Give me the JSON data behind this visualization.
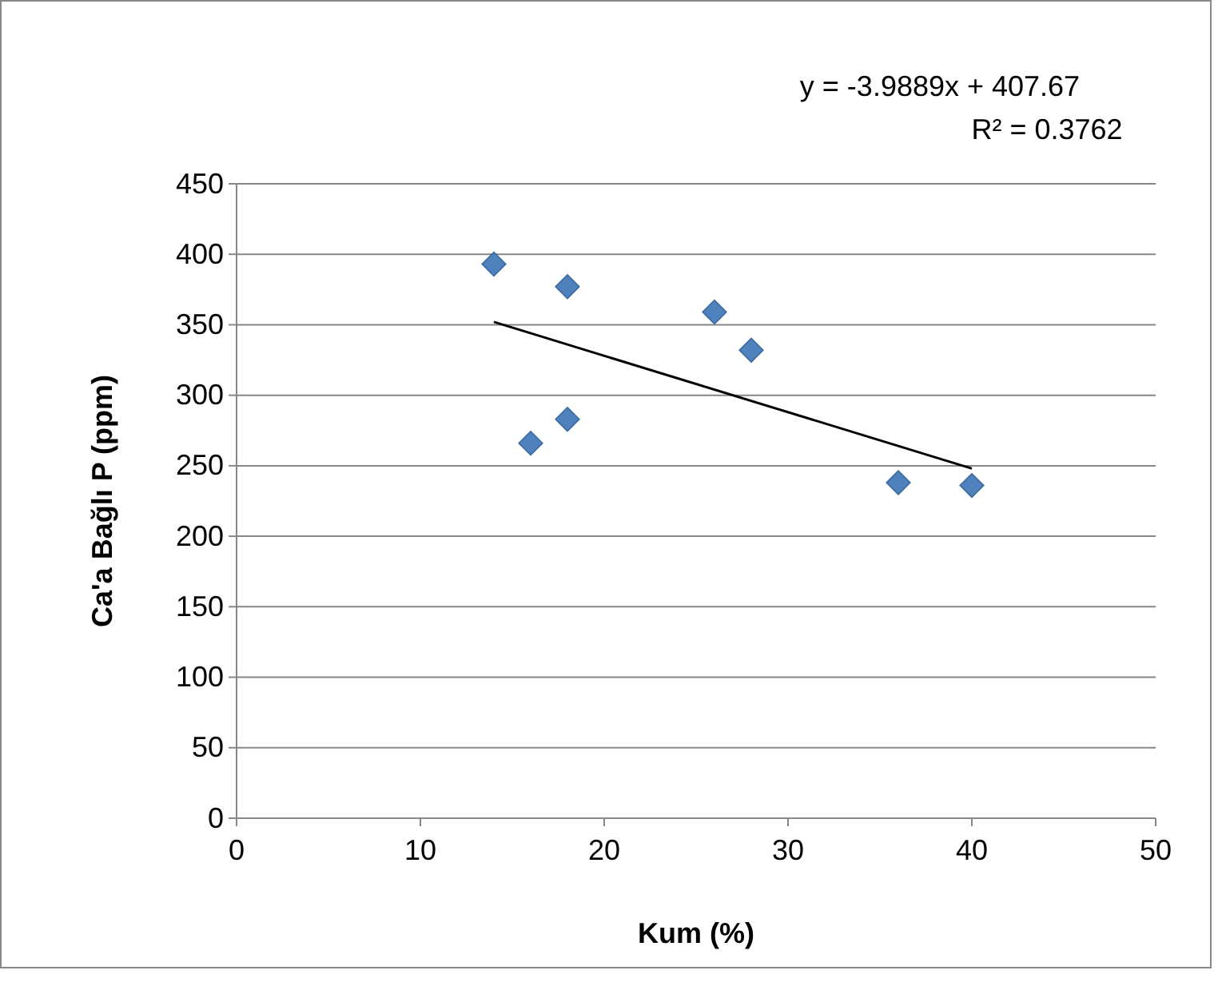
{
  "chart_data": {
    "type": "scatter",
    "xlabel": "Kum (%)",
    "ylabel": "Ca'a Bağlı P (ppm)",
    "annotations": [
      "y = -3.9889x + 407.67",
      "R² = 0.3762"
    ],
    "series": [
      {
        "color": "#4f81bd",
        "marker": "diamond",
        "x": [
          14,
          18,
          16,
          18,
          26,
          28,
          36,
          40
        ],
        "values": [
          393,
          377,
          266,
          283,
          359,
          332,
          238,
          236
        ]
      },
      {
        "type": "line",
        "color": "#000000",
        "x": [
          14,
          40
        ],
        "values": [
          352,
          248
        ]
      }
    ],
    "xlim": [
      0,
      50
    ],
    "xticks": [
      0,
      10,
      20,
      30,
      40,
      50
    ],
    "ylim": [
      0,
      450
    ],
    "yticks": [
      0,
      50,
      100,
      150,
      200,
      250,
      300,
      350,
      400,
      450
    ],
    "grid": "y"
  }
}
